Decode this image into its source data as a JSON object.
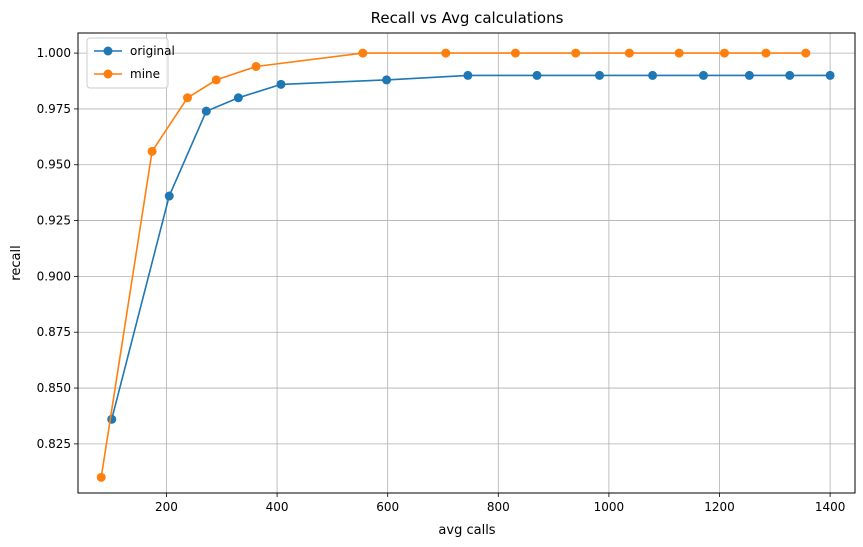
{
  "chart_data": {
    "type": "line",
    "title": "Recall vs Avg calculations",
    "xlabel": "avg calls",
    "ylabel": "recall",
    "xlim": [
      40,
      1445
    ],
    "ylim": [
      0.803,
      1.009
    ],
    "xticks": [
      200,
      400,
      600,
      800,
      1000,
      1200,
      1400
    ],
    "yticks": [
      0.825,
      0.85,
      0.875,
      0.9,
      0.925,
      0.95,
      0.975,
      1.0
    ],
    "grid": true,
    "legend_position": "top-left",
    "series": [
      {
        "name": "original",
        "color": "#1f77b4",
        "x": [
          101,
          205,
          272,
          330,
          407,
          598,
          745,
          870,
          983,
          1079,
          1171,
          1254,
          1327,
          1400
        ],
        "y": [
          0.836,
          0.936,
          0.974,
          0.98,
          0.986,
          0.988,
          0.99,
          0.99,
          0.99,
          0.99,
          0.99,
          0.99,
          0.99,
          0.99
        ]
      },
      {
        "name": "mine",
        "color": "#ff7f0e",
        "x": [
          82,
          174,
          238,
          290,
          362,
          555,
          705,
          831,
          940,
          1037,
          1127,
          1209,
          1284,
          1356
        ],
        "y": [
          0.81,
          0.956,
          0.98,
          0.988,
          0.994,
          1.0,
          1.0,
          1.0,
          1.0,
          1.0,
          1.0,
          1.0,
          1.0,
          1.0
        ]
      }
    ]
  }
}
